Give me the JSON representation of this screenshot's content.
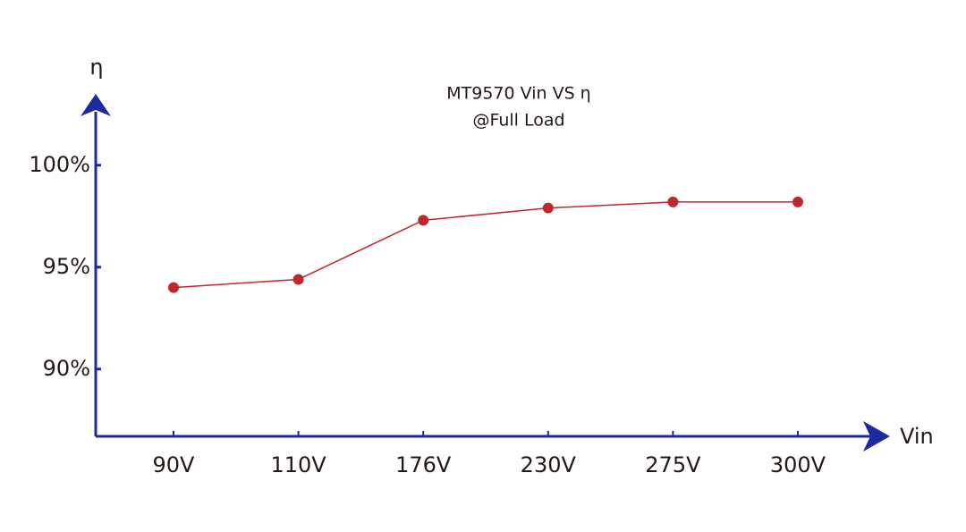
{
  "chart_data": {
    "type": "line",
    "title": "MT9570 Vin VS η",
    "subtitle": "@Full Load",
    "x_label": "Vin",
    "y_label": "η",
    "categories": [
      "90V",
      "110V",
      "176V",
      "230V",
      "275V",
      "300V"
    ],
    "series": [
      {
        "name": "η",
        "color": "#c0272d",
        "values": [
          94.0,
          94.4,
          97.3,
          97.9,
          98.2,
          98.2
        ]
      }
    ],
    "ylim": [
      86.7,
      103.5
    ],
    "yticks": [
      {
        "value": 90,
        "label": "90%"
      },
      {
        "value": 95,
        "label": "95%"
      },
      {
        "value": 100,
        "label": "100%"
      }
    ],
    "axis_color": "#1b2aa0"
  }
}
